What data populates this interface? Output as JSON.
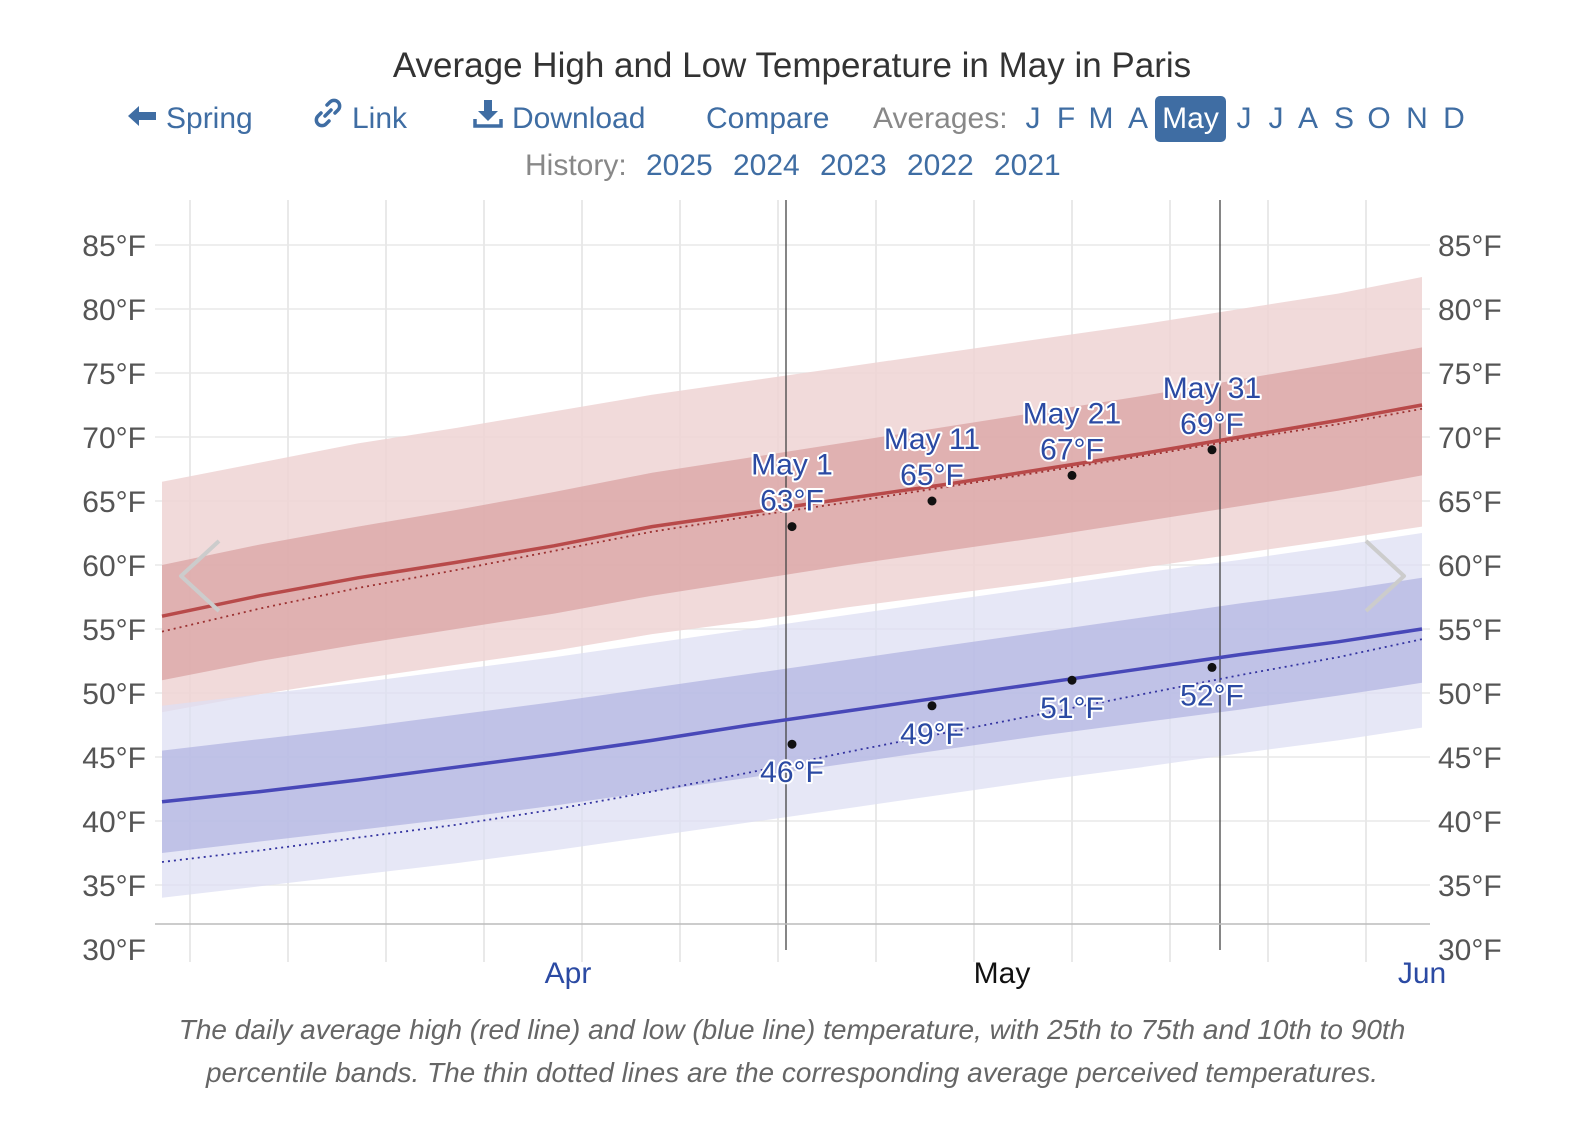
{
  "title": "Average High and Low Temperature in May in Paris",
  "toolbar": {
    "spring_label": "Spring",
    "link_label": "Link",
    "download_label": "Download",
    "compare_label": "Compare",
    "averages_label": "Averages:",
    "months": [
      "J",
      "F",
      "M",
      "A",
      "May",
      "J",
      "J",
      "A",
      "S",
      "O",
      "N",
      "D"
    ],
    "active_month_index": 4,
    "icons": {
      "spring": "arrow-left-icon",
      "link": "link-icon",
      "download": "download-icon"
    }
  },
  "history": {
    "label": "History:",
    "years": [
      "2025",
      "2024",
      "2023",
      "2022",
      "2021"
    ]
  },
  "caption": {
    "line1": "The daily average high (red line) and low (blue line) temperature, with 25th to 75th and 10th to 90th",
    "line2": "percentile bands. The thin dotted lines are the corresponding average perceived temperatures."
  },
  "chart_data": {
    "type": "line",
    "x_start": "Mar 17",
    "x_end": "Jun 15",
    "ylim": [
      30,
      85
    ],
    "y_ticks": [
      "30°F",
      "35°F",
      "40°F",
      "45°F",
      "50°F",
      "55°F",
      "60°F",
      "65°F",
      "70°F",
      "75°F",
      "80°F",
      "85°F"
    ],
    "month_labels": [
      {
        "label": "Apr",
        "date": "Apr 15",
        "current": false
      },
      {
        "label": "May",
        "date": "May 16",
        "current": true
      },
      {
        "label": "Jun",
        "date": "Jun 15",
        "current": false
      }
    ],
    "month_range": [
      "May 1",
      "May 31"
    ],
    "grid": true,
    "x": [
      "Mar 17",
      "Mar 24",
      "Mar 31",
      "Apr 7",
      "Apr 14",
      "Apr 21",
      "Apr 28",
      "May 5",
      "May 12",
      "May 19",
      "May 26",
      "Jun 2",
      "Jun 9",
      "Jun 15"
    ],
    "colors": {
      "high_line": "#b84a4a",
      "high_band_inner": "#d9a3a3",
      "high_band_outer": "#eed3d3",
      "low_line": "#4848b8",
      "low_band_inner": "#b3b5e2",
      "low_band_outer": "#dddff3",
      "feels_high": "#9b3030",
      "feels_low": "#3333a0",
      "nav_arrow": "#cccccc",
      "month_label": "#2b4aa3"
    },
    "series": [
      {
        "key": "high",
        "values": [
          56.0,
          57.6,
          59.0,
          60.2,
          61.5,
          63.0,
          64.1,
          65.2,
          66.3,
          67.5,
          68.7,
          70.0,
          71.3,
          72.5
        ]
      },
      {
        "key": "high_p25",
        "values": [
          51.0,
          52.5,
          53.8,
          55.0,
          56.2,
          57.6,
          58.8,
          60.0,
          61.1,
          62.2,
          63.4,
          64.6,
          65.8,
          67.0
        ]
      },
      {
        "key": "high_p75",
        "values": [
          60.0,
          61.6,
          63.0,
          64.3,
          65.7,
          67.2,
          68.4,
          69.6,
          70.8,
          72.0,
          73.2,
          74.5,
          75.8,
          77.0
        ]
      },
      {
        "key": "high_p10",
        "values": [
          48.5,
          49.9,
          51.1,
          52.2,
          53.3,
          54.6,
          55.6,
          56.7,
          57.7,
          58.7,
          59.8,
          60.9,
          62.0,
          63.0
        ]
      },
      {
        "key": "high_p90",
        "values": [
          66.5,
          68.0,
          69.5,
          70.7,
          72.0,
          73.3,
          74.4,
          75.5,
          76.6,
          77.7,
          78.8,
          80.0,
          81.2,
          82.5
        ]
      },
      {
        "key": "high_feels",
        "values": [
          54.8,
          56.6,
          58.2,
          59.6,
          61.1,
          62.6,
          63.8,
          64.9,
          66.1,
          67.3,
          68.5,
          69.8,
          71.0,
          72.2
        ]
      },
      {
        "key": "low",
        "values": [
          41.5,
          42.3,
          43.2,
          44.2,
          45.2,
          46.3,
          47.5,
          48.6,
          49.7,
          50.8,
          51.9,
          53.0,
          54.0,
          55.0
        ]
      },
      {
        "key": "low_p25",
        "values": [
          37.5,
          38.4,
          39.3,
          40.2,
          41.2,
          42.3,
          43.4,
          44.5,
          45.6,
          46.7,
          47.7,
          48.7,
          49.8,
          50.8
        ]
      },
      {
        "key": "low_p75",
        "values": [
          45.5,
          46.4,
          47.3,
          48.3,
          49.3,
          50.4,
          51.5,
          52.6,
          53.7,
          54.8,
          55.9,
          57.0,
          58.0,
          59.0
        ]
      },
      {
        "key": "low_p10",
        "values": [
          34.0,
          34.9,
          35.8,
          36.7,
          37.7,
          38.8,
          39.9,
          41.0,
          42.1,
          43.2,
          44.2,
          45.3,
          46.3,
          47.3
        ]
      },
      {
        "key": "low_p90",
        "values": [
          49.0,
          49.9,
          50.8,
          51.8,
          52.8,
          53.9,
          55.0,
          56.1,
          57.2,
          58.3,
          59.4,
          60.4,
          61.5,
          62.5
        ]
      },
      {
        "key": "low_feels",
        "values": [
          36.8,
          37.7,
          38.7,
          39.7,
          40.9,
          42.3,
          43.8,
          45.4,
          46.9,
          48.4,
          49.9,
          51.4,
          52.8,
          54.2
        ]
      }
    ],
    "annotations": [
      {
        "date": "May 1",
        "high": 63,
        "low": 46,
        "high_label": "63°F",
        "low_label": "46°F",
        "date_label": "May 1"
      },
      {
        "date": "May 11",
        "high": 65,
        "low": 49,
        "high_label": "65°F",
        "low_label": "49°F",
        "date_label": "May 11"
      },
      {
        "date": "May 21",
        "high": 67,
        "low": 51,
        "high_label": "67°F",
        "low_label": "51°F",
        "date_label": "May 21"
      },
      {
        "date": "May 31",
        "high": 69,
        "low": 52,
        "high_label": "69°F",
        "low_label": "52°F",
        "date_label": "May 31"
      }
    ],
    "nav": {
      "prev": "chevron-left-icon",
      "next": "chevron-right-icon"
    }
  }
}
